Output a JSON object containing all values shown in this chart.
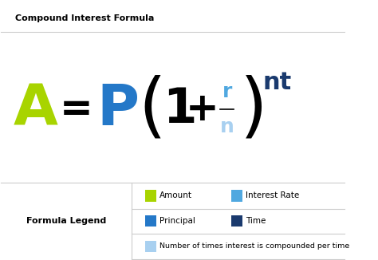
{
  "title": "Compound Interest Formula",
  "background_color": "#ffffff",
  "title_color": "#000000",
  "title_fontsize": 8,
  "color_A": "#a8d400",
  "color_P": "#2478c8",
  "color_black": "#000000",
  "color_r": "#50a8e0",
  "color_n": "#a8d0f0",
  "color_nt": "#1a3a6e",
  "legend_label": "Formula Legend",
  "legend_items": [
    {
      "label": "Amount",
      "color": "#a8d400"
    },
    {
      "label": "Interest Rate",
      "color": "#50a8e0"
    },
    {
      "label": "Principal",
      "color": "#2478c8"
    },
    {
      "label": "Time",
      "color": "#1a3a6e"
    },
    {
      "label": "Number of times interest is compounded per time",
      "color": "#a8d0f0"
    }
  ]
}
